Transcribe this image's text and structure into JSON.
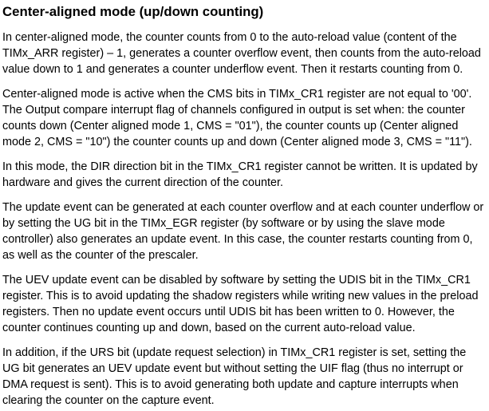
{
  "section": {
    "title": "Center-aligned mode (up/down counting)"
  },
  "paragraphs": [
    "In center-aligned mode, the counter counts from 0 to the auto-reload value (content of the TIMx_ARR register) – 1, generates a counter overflow event, then counts from the auto-reload value down to 1 and generates a counter underflow event. Then it restarts counting from 0.",
    "Center-aligned mode is active when the CMS bits in TIMx_CR1 register are not equal to '00'. The Output compare interrupt flag of channels configured in output is set when: the counter counts down (Center aligned mode 1, CMS = \"01\"), the counter counts up (Center aligned mode 2, CMS = \"10\") the counter counts up and down (Center aligned mode 3, CMS = \"11\").",
    "In this mode, the DIR direction bit in the TIMx_CR1 register cannot be written. It is updated by hardware and gives the current direction of the counter.",
    "The update event can be generated at each counter overflow and at each counter underflow or by setting the UG bit in the TIMx_EGR register (by software or by using the slave mode controller) also generates an update event. In this case, the counter restarts counting from 0, as well as the counter of the prescaler.",
    "The UEV update event can be disabled by software by setting the UDIS bit in the TIMx_CR1 register. This is to avoid updating the shadow registers while writing new values in the preload registers. Then no update event occurs until UDIS bit has been written to 0. However, the counter continues counting up and down, based on the current auto-reload value.",
    "In addition, if the URS bit (update request selection) in TIMx_CR1 register is set, setting the UG bit generates an UEV update event but without setting the UIF flag (thus no interrupt or DMA request is sent). This is to avoid generating both update and capture interrupts when clearing the counter on the capture event."
  ]
}
